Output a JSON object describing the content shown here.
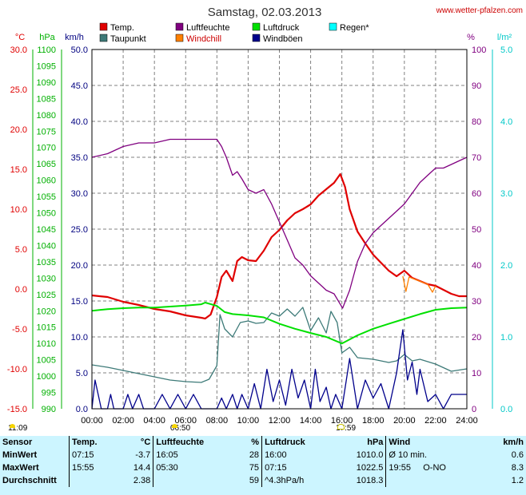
{
  "title": "Samstag, 02.03.2013",
  "site": "www.wetter-pfalzen.com",
  "legend": [
    {
      "label": "Temp.",
      "color": "#e00000"
    },
    {
      "label": "Luftfeuchte",
      "color": "#800080"
    },
    {
      "label": "Luftdruck",
      "color": "#00e000"
    },
    {
      "label": "Regen*",
      "color": "#00ffff"
    },
    {
      "label": "Taupunkt",
      "color": "#3d7a78"
    },
    {
      "label": "Windchill",
      "color": "#ff8000"
    },
    {
      "label": "Windböen",
      "color": "#00008b"
    }
  ],
  "axis_units": {
    "temp": "°C",
    "pressure": "hPa",
    "wind": "km/h",
    "humidity": "%",
    "rain": "l/m²"
  },
  "sun": {
    "rise_time": "06:50",
    "set_time": "17:59",
    "moonrise": "11:09"
  },
  "stats": {
    "headers": [
      "Sensor",
      "Temp.",
      "°C",
      "Luftfeuchte",
      "%",
      "Luftdruck",
      "hPa",
      "Wind",
      "km/h"
    ],
    "rows": [
      {
        "label": "MinWert",
        "temp_t": "07:15",
        "temp_v": "-3.7",
        "hum_t": "16:05",
        "hum_v": "28",
        "pres_t": "16:00",
        "pres_v": "1010.0",
        "wind_t": "Ø 10 min.",
        "wind_v": "0.6"
      },
      {
        "label": "MaxWert",
        "temp_t": "15:55",
        "temp_v": "14.4",
        "hum_t": "05:30",
        "hum_v": "75",
        "pres_t": "07:15",
        "pres_v": "1022.5",
        "wind_t": "19:55",
        "wind_d": "O-NO",
        "wind_v": "8.3"
      },
      {
        "label": "Durchschnitt",
        "temp_t": "",
        "temp_v": "2.38",
        "hum_t": "",
        "hum_v": "59",
        "pres_t": "^4.3hPa/h",
        "pres_v": "1018.3",
        "wind_t": "",
        "wind_v": "1.2"
      }
    ]
  },
  "chart_data": {
    "type": "line",
    "x_unit": "hour of day",
    "x_ticks": [
      "00:00",
      "02:00",
      "04:00",
      "06:00",
      "08:00",
      "10:00",
      "12:00",
      "14:00",
      "16:00",
      "18:00",
      "20:00",
      "22:00",
      "24:00"
    ],
    "axes": {
      "temp": {
        "label": "°C",
        "range": [
          -15,
          30
        ],
        "ticks": [
          "30.0",
          "25.0",
          "20.0",
          "15.0",
          "10.0",
          "5.0",
          "0.0",
          "-5.0",
          "-10.0",
          "-15.0"
        ]
      },
      "pressure": {
        "label": "hPa",
        "range": [
          990,
          1100
        ],
        "ticks": [
          "1100",
          "1095",
          "1090",
          "1085",
          "1080",
          "1075",
          "1070",
          "1065",
          "1060",
          "1055",
          "1050",
          "1045",
          "1040",
          "1035",
          "1030",
          "1025",
          "1020",
          "1015",
          "1010",
          "1005",
          "1000",
          "995",
          "990"
        ]
      },
      "wind": {
        "label": "km/h",
        "range": [
          0,
          50
        ],
        "ticks": [
          "50.0",
          "45.0",
          "40.0",
          "35.0",
          "30.0",
          "25.0",
          "20.0",
          "15.0",
          "10.0",
          "5.0",
          "0.0"
        ]
      },
      "humidity": {
        "label": "%",
        "range": [
          0,
          100
        ],
        "ticks": [
          "100",
          "90",
          "80",
          "70",
          "60",
          "50",
          "40",
          "30",
          "20",
          "10",
          "0"
        ]
      },
      "rain": {
        "label": "l/m²",
        "range": [
          0,
          5
        ],
        "ticks": [
          "5.0",
          "4.0",
          "3.0",
          "2.0",
          "1.0",
          "0.0"
        ]
      }
    },
    "series": [
      {
        "name": "Temp.",
        "axis": "temp",
        "color": "#e00000",
        "points": [
          [
            0,
            -0.8
          ],
          [
            1,
            -1.0
          ],
          [
            2,
            -1.6
          ],
          [
            3,
            -2.0
          ],
          [
            4,
            -2.5
          ],
          [
            5,
            -2.8
          ],
          [
            6,
            -3.3
          ],
          [
            7,
            -3.6
          ],
          [
            7.25,
            -3.7
          ],
          [
            7.6,
            -3.2
          ],
          [
            8,
            -1.0
          ],
          [
            8.3,
            1.5
          ],
          [
            8.6,
            2.3
          ],
          [
            9,
            1.0
          ],
          [
            9.3,
            3.5
          ],
          [
            9.6,
            4.0
          ],
          [
            10,
            3.6
          ],
          [
            10.5,
            3.5
          ],
          [
            11,
            4.8
          ],
          [
            11.5,
            6.5
          ],
          [
            12,
            7.4
          ],
          [
            12.5,
            8.6
          ],
          [
            13,
            9.5
          ],
          [
            13.5,
            10.0
          ],
          [
            14,
            10.6
          ],
          [
            14.5,
            11.7
          ],
          [
            15,
            12.5
          ],
          [
            15.5,
            13.3
          ],
          [
            15.9,
            14.4
          ],
          [
            16.2,
            12.8
          ],
          [
            16.5,
            10.0
          ],
          [
            17,
            7.2
          ],
          [
            17.5,
            5.7
          ],
          [
            18,
            4.3
          ],
          [
            18.5,
            3.3
          ],
          [
            19,
            2.3
          ],
          [
            19.5,
            1.6
          ],
          [
            20,
            2.3
          ],
          [
            20.5,
            1.4
          ],
          [
            21,
            1.0
          ],
          [
            21.5,
            0.6
          ],
          [
            22,
            0.4
          ],
          [
            22.5,
            -0.1
          ],
          [
            23,
            -0.6
          ],
          [
            23.5,
            -0.9
          ],
          [
            24,
            -0.9
          ]
        ]
      },
      {
        "name": "Taupunkt",
        "axis": "temp",
        "color": "#3d7a78",
        "points": [
          [
            0,
            -9.5
          ],
          [
            1,
            -9.8
          ],
          [
            2,
            -10.2
          ],
          [
            3,
            -10.6
          ],
          [
            4,
            -11.0
          ],
          [
            5,
            -11.4
          ],
          [
            6,
            -11.6
          ],
          [
            7,
            -11.7
          ],
          [
            7.5,
            -11.3
          ],
          [
            8,
            -9.6
          ],
          [
            8.2,
            -3.2
          ],
          [
            8.5,
            -5.0
          ],
          [
            9,
            -6.0
          ],
          [
            9.5,
            -4.2
          ],
          [
            10,
            -4.0
          ],
          [
            10.5,
            -4.3
          ],
          [
            11,
            -4.2
          ],
          [
            11.5,
            -3.0
          ],
          [
            12,
            -3.4
          ],
          [
            12.5,
            -2.5
          ],
          [
            13,
            -3.4
          ],
          [
            13.5,
            -2.3
          ],
          [
            14,
            -5.2
          ],
          [
            14.5,
            -3.6
          ],
          [
            15,
            -5.5
          ],
          [
            15.3,
            -2.8
          ],
          [
            15.7,
            -4.2
          ],
          [
            16,
            -8.0
          ],
          [
            16.5,
            -7.3
          ],
          [
            17,
            -8.6
          ],
          [
            18,
            -8.8
          ],
          [
            19,
            -9.2
          ],
          [
            19.5,
            -9.0
          ],
          [
            20,
            -8.2
          ],
          [
            20.5,
            -9.0
          ],
          [
            21,
            -8.8
          ],
          [
            22,
            -9.4
          ],
          [
            23,
            -10.3
          ],
          [
            24,
            -10.0
          ]
        ]
      },
      {
        "name": "Windchill",
        "axis": "temp",
        "color": "#ff8000",
        "points": [
          [
            19.9,
            1.6
          ],
          [
            20.1,
            -0.3
          ],
          [
            20.3,
            1.5
          ],
          [
            21.5,
            0.6
          ],
          [
            21.8,
            -0.4
          ],
          [
            22,
            0.4
          ]
        ]
      },
      {
        "name": "Luftfeuchte",
        "axis": "humidity",
        "color": "#800080",
        "points": [
          [
            0,
            70
          ],
          [
            1,
            71
          ],
          [
            2,
            73
          ],
          [
            3,
            74
          ],
          [
            4,
            74
          ],
          [
            5,
            75
          ],
          [
            5.5,
            75
          ],
          [
            6,
            75
          ],
          [
            7,
            75
          ],
          [
            8,
            75
          ],
          [
            8.3,
            73
          ],
          [
            8.6,
            70
          ],
          [
            9,
            65
          ],
          [
            9.3,
            66
          ],
          [
            9.6,
            64
          ],
          [
            10,
            61
          ],
          [
            10.5,
            60
          ],
          [
            11,
            61
          ],
          [
            11.5,
            57
          ],
          [
            12,
            52
          ],
          [
            12.5,
            47
          ],
          [
            13,
            42
          ],
          [
            13.5,
            40
          ],
          [
            14,
            37
          ],
          [
            14.5,
            35
          ],
          [
            15,
            33
          ],
          [
            15.5,
            32
          ],
          [
            16.05,
            28
          ],
          [
            16.5,
            33
          ],
          [
            17,
            41
          ],
          [
            17.5,
            46
          ],
          [
            18,
            49
          ],
          [
            18.5,
            51
          ],
          [
            19,
            53
          ],
          [
            19.5,
            55
          ],
          [
            20,
            57
          ],
          [
            20.5,
            60
          ],
          [
            21,
            63
          ],
          [
            21.5,
            65
          ],
          [
            22,
            67
          ],
          [
            22.5,
            67
          ],
          [
            23,
            68
          ],
          [
            23.5,
            69
          ],
          [
            24,
            70
          ]
        ]
      },
      {
        "name": "Luftdruck",
        "axis": "pressure",
        "color": "#00e000",
        "points": [
          [
            0,
            1020.0
          ],
          [
            1,
            1020.5
          ],
          [
            2,
            1020.8
          ],
          [
            3,
            1021.0
          ],
          [
            4,
            1021.0
          ],
          [
            5,
            1021.3
          ],
          [
            6,
            1021.6
          ],
          [
            7,
            1022.0
          ],
          [
            7.25,
            1022.5
          ],
          [
            8,
            1021.5
          ],
          [
            8.5,
            1019.6
          ],
          [
            9,
            1019.0
          ],
          [
            10,
            1018.6
          ],
          [
            11,
            1018.0
          ],
          [
            12,
            1016.0
          ],
          [
            13,
            1014.5
          ],
          [
            14,
            1013.2
          ],
          [
            15,
            1012.0
          ],
          [
            16,
            1010.0
          ],
          [
            17,
            1012.5
          ],
          [
            18,
            1014.5
          ],
          [
            19,
            1016.0
          ],
          [
            20,
            1017.5
          ],
          [
            21,
            1019.0
          ],
          [
            22,
            1020.3
          ],
          [
            23,
            1020.8
          ],
          [
            24,
            1021.0
          ]
        ]
      },
      {
        "name": "Windböen",
        "axis": "wind",
        "color": "#00008b",
        "points": [
          [
            0,
            0
          ],
          [
            0.2,
            4.0
          ],
          [
            0.4,
            2.0
          ],
          [
            0.6,
            0
          ],
          [
            1,
            0
          ],
          [
            1.2,
            2.0
          ],
          [
            1.4,
            0
          ],
          [
            2,
            0
          ],
          [
            2.3,
            2.0
          ],
          [
            2.6,
            0
          ],
          [
            3,
            2.0
          ],
          [
            3.3,
            0
          ],
          [
            4,
            0
          ],
          [
            4.5,
            2.0
          ],
          [
            5,
            0
          ],
          [
            5.5,
            2.0
          ],
          [
            6,
            0
          ],
          [
            6.5,
            2.0
          ],
          [
            7,
            0
          ],
          [
            8,
            0
          ],
          [
            8.3,
            1.5
          ],
          [
            8.6,
            0
          ],
          [
            9,
            2.0
          ],
          [
            9.3,
            0
          ],
          [
            9.6,
            2.0
          ],
          [
            10,
            0
          ],
          [
            10.4,
            3.5
          ],
          [
            10.8,
            0
          ],
          [
            11.2,
            5.5
          ],
          [
            11.6,
            1.0
          ],
          [
            12,
            4.0
          ],
          [
            12.4,
            0.5
          ],
          [
            12.8,
            5.5
          ],
          [
            13.2,
            1.5
          ],
          [
            13.6,
            4.0
          ],
          [
            14,
            0
          ],
          [
            14.3,
            5.5
          ],
          [
            14.6,
            1.0
          ],
          [
            15,
            3.0
          ],
          [
            15.3,
            0
          ],
          [
            15.6,
            2.0
          ],
          [
            16,
            0
          ],
          [
            16.5,
            7.0
          ],
          [
            17,
            0
          ],
          [
            17.5,
            4.0
          ],
          [
            18,
            1.5
          ],
          [
            18.5,
            3.5
          ],
          [
            19,
            0
          ],
          [
            19.5,
            5.0
          ],
          [
            19.9,
            11.0
          ],
          [
            20.2,
            4.0
          ],
          [
            20.5,
            6.5
          ],
          [
            20.8,
            2.0
          ],
          [
            21,
            5.5
          ],
          [
            21.5,
            1.0
          ],
          [
            22,
            2.0
          ],
          [
            22.5,
            0
          ],
          [
            23,
            2.0
          ],
          [
            23.5,
            2.0
          ],
          [
            24,
            2.0
          ]
        ]
      }
    ],
    "rain": {
      "name": "Regen*",
      "axis": "rain",
      "values": []
    },
    "grid": true
  }
}
